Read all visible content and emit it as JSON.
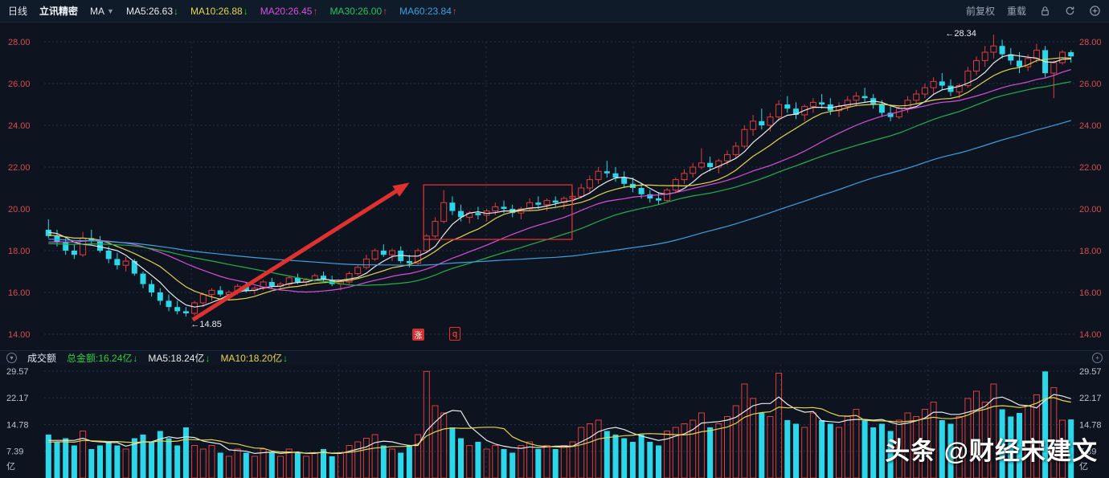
{
  "toolbar": {
    "period": "日线",
    "symbol": "立讯精密",
    "ma_selector": "MA",
    "ma_items": [
      {
        "text": "MA5:26.63",
        "arrow": "↓",
        "color": "#e9e9e9",
        "arrow_color": "#2ecc40"
      },
      {
        "text": "MA10:26.88",
        "arrow": "↓",
        "color": "#e6d44c",
        "arrow_color": "#2ecc40"
      },
      {
        "text": "MA20:26.45",
        "arrow": "↑",
        "color": "#d94fd9",
        "arrow_color": "#e23b3b"
      },
      {
        "text": "MA30:26.00",
        "arrow": "↑",
        "color": "#22c55e",
        "arrow_color": "#e23b3b"
      },
      {
        "text": "MA60:23.84",
        "arrow": "↑",
        "color": "#3e9fe0",
        "arrow_color": "#e23b3b"
      }
    ],
    "buttons": [
      "前复权",
      "重载"
    ]
  },
  "volume_header": {
    "title": "成交额",
    "items": [
      {
        "text": "总金额:16.24亿",
        "arrow": "↓",
        "color": "#2ecc40",
        "arrow_color": "#2ecc40"
      },
      {
        "text": "MA5:18.24亿",
        "arrow": "↓",
        "color": "#e9e9e9",
        "arrow_color": "#2ecc40"
      },
      {
        "text": "MA10:18.20亿",
        "arrow": "↓",
        "color": "#e6d44c",
        "arrow_color": "#2ecc40"
      }
    ]
  },
  "annotations": {
    "high_label": "←28.34",
    "low_label": "←14.85",
    "badge_zhang": "涨",
    "badge_q": "q"
  },
  "watermark": "头条 @财经宋建文",
  "colors": {
    "bg": "#0d141f",
    "up": "#e23b3b",
    "down": "#2bd7e8",
    "grid": "#1c334f",
    "axis": "#d94b4b",
    "vol_axis": "#b9c4d0",
    "annotation": "#e03131",
    "label_text": "#e8eef5"
  },
  "chart_data": {
    "type": "candlestick",
    "title": "立讯精密 日线",
    "price_ticks": [
      28,
      26,
      24,
      22,
      20,
      18,
      16,
      14
    ],
    "ylim": [
      14,
      28.5
    ],
    "high_value": 28.34,
    "low_value": 14.85,
    "volume_ticks": [
      29.57,
      22.17,
      14.78,
      7.39
    ],
    "volume_unit": "亿",
    "total_amount_label": "16.24亿",
    "ma_periods": [
      5,
      10,
      20,
      30,
      60
    ],
    "ma_colors": [
      "#e9e9e9",
      "#e6d44c",
      "#d94fd9",
      "#22b14c",
      "#3e9fe0"
    ],
    "volume_ma_periods": [
      5,
      10
    ],
    "volume_ma_colors": [
      "#e9e9e9",
      "#e6d44c"
    ],
    "prehistory_closes": [
      19.2,
      19.3,
      19.1,
      19.4,
      19.2,
      19.0,
      19.1,
      18.9,
      19.0,
      18.8,
      18.9,
      19.1,
      19.0,
      18.8,
      18.7,
      18.9,
      18.8,
      18.6,
      18.7,
      18.5,
      18.6,
      18.8,
      18.7,
      18.5,
      18.4,
      18.6,
      18.5,
      18.3,
      18.4,
      18.2,
      18.3,
      18.5,
      18.4,
      18.2,
      18.1,
      18.3,
      18.2,
      18.0,
      18.1,
      17.9,
      18.0,
      18.2,
      18.1,
      17.9,
      17.8,
      18.0,
      17.9,
      18.1,
      18.2,
      18.4,
      18.3,
      18.5,
      18.6,
      18.4,
      18.6,
      18.8,
      18.7,
      18.9,
      19.0,
      19.1
    ],
    "prehistory_volumes": [
      10,
      9,
      11,
      10,
      8,
      9,
      10,
      11,
      9,
      10
    ],
    "candles": [
      [
        19.0,
        19.5,
        18.6,
        18.7
      ],
      [
        18.7,
        19.0,
        18.2,
        18.4
      ],
      [
        18.4,
        18.6,
        17.8,
        18.0
      ],
      [
        18.0,
        18.3,
        17.6,
        17.8
      ],
      [
        17.8,
        18.9,
        17.7,
        18.6
      ],
      [
        18.6,
        19.0,
        18.3,
        18.5
      ],
      [
        18.5,
        18.7,
        17.9,
        18.0
      ],
      [
        18.0,
        18.2,
        17.4,
        17.6
      ],
      [
        17.6,
        17.9,
        17.1,
        17.3
      ],
      [
        17.3,
        17.7,
        17.0,
        17.5
      ],
      [
        17.5,
        17.6,
        16.8,
        16.9
      ],
      [
        16.9,
        17.0,
        16.2,
        16.4
      ],
      [
        16.4,
        16.6,
        15.8,
        16.0
      ],
      [
        16.0,
        16.2,
        15.4,
        15.6
      ],
      [
        15.6,
        15.9,
        15.1,
        15.3
      ],
      [
        15.3,
        15.6,
        14.95,
        15.1
      ],
      [
        15.1,
        15.3,
        14.85,
        15.0
      ],
      [
        15.0,
        15.6,
        14.9,
        15.5
      ],
      [
        15.5,
        16.0,
        15.3,
        15.9
      ],
      [
        15.9,
        16.2,
        15.6,
        16.1
      ],
      [
        16.1,
        16.3,
        15.8,
        15.9
      ],
      [
        15.9,
        16.1,
        15.6,
        16.0
      ],
      [
        16.0,
        16.4,
        15.9,
        16.3
      ],
      [
        16.3,
        16.5,
        16.0,
        16.1
      ],
      [
        16.1,
        16.3,
        15.9,
        16.2
      ],
      [
        16.2,
        16.6,
        16.1,
        16.5
      ],
      [
        16.5,
        16.7,
        16.2,
        16.3
      ],
      [
        16.3,
        16.5,
        16.1,
        16.4
      ],
      [
        16.4,
        16.8,
        16.3,
        16.7
      ],
      [
        16.7,
        16.9,
        16.4,
        16.5
      ],
      [
        16.5,
        16.7,
        16.3,
        16.6
      ],
      [
        16.6,
        16.9,
        16.5,
        16.8
      ],
      [
        16.8,
        17.0,
        16.5,
        16.6
      ],
      [
        16.6,
        16.8,
        16.3,
        16.4
      ],
      [
        16.4,
        16.6,
        16.1,
        16.5
      ],
      [
        16.5,
        17.0,
        16.4,
        16.9
      ],
      [
        16.9,
        17.3,
        16.8,
        17.2
      ],
      [
        17.2,
        17.8,
        17.1,
        17.6
      ],
      [
        17.6,
        18.1,
        17.5,
        18.0
      ],
      [
        18.0,
        18.3,
        17.7,
        17.8
      ],
      [
        17.8,
        18.1,
        17.5,
        18.0
      ],
      [
        18.0,
        18.2,
        17.4,
        17.5
      ],
      [
        17.5,
        17.8,
        17.2,
        17.4
      ],
      [
        17.4,
        18.1,
        17.3,
        18.0
      ],
      [
        18.0,
        18.8,
        17.9,
        18.7
      ],
      [
        18.7,
        19.6,
        18.6,
        19.4
      ],
      [
        19.4,
        20.9,
        19.3,
        20.3
      ],
      [
        20.3,
        20.6,
        19.7,
        19.9
      ],
      [
        19.9,
        20.2,
        19.4,
        19.6
      ],
      [
        19.6,
        19.9,
        19.3,
        19.8
      ],
      [
        19.8,
        20.1,
        19.5,
        19.7
      ],
      [
        19.7,
        20.0,
        19.4,
        19.9
      ],
      [
        19.9,
        20.3,
        19.7,
        20.1
      ],
      [
        20.1,
        20.4,
        19.8,
        20.0
      ],
      [
        20.0,
        20.2,
        19.6,
        19.8
      ],
      [
        19.8,
        20.1,
        19.5,
        20.0
      ],
      [
        20.0,
        20.5,
        19.9,
        20.3
      ],
      [
        20.3,
        20.6,
        20.0,
        20.2
      ],
      [
        20.2,
        20.5,
        19.9,
        20.4
      ],
      [
        20.4,
        20.6,
        20.1,
        20.3
      ],
      [
        20.3,
        20.6,
        20.0,
        20.5
      ],
      [
        20.5,
        20.8,
        20.2,
        20.6
      ],
      [
        20.6,
        21.2,
        20.5,
        21.0
      ],
      [
        21.0,
        21.6,
        20.8,
        21.4
      ],
      [
        21.4,
        22.0,
        21.2,
        21.8
      ],
      [
        21.8,
        22.3,
        21.5,
        21.7
      ],
      [
        21.7,
        22.0,
        21.3,
        21.5
      ],
      [
        21.5,
        21.8,
        21.0,
        21.2
      ],
      [
        21.2,
        21.5,
        20.8,
        21.0
      ],
      [
        21.0,
        21.2,
        20.5,
        20.7
      ],
      [
        20.7,
        20.9,
        20.3,
        20.5
      ],
      [
        20.5,
        20.8,
        20.2,
        20.4
      ],
      [
        20.4,
        21.0,
        20.3,
        20.9
      ],
      [
        20.9,
        21.5,
        20.8,
        21.4
      ],
      [
        21.4,
        21.9,
        21.2,
        21.7
      ],
      [
        21.7,
        22.2,
        21.5,
        22.0
      ],
      [
        22.0,
        22.9,
        21.9,
        22.2
      ],
      [
        22.2,
        22.5,
        21.8,
        22.0
      ],
      [
        22.0,
        22.4,
        21.7,
        22.3
      ],
      [
        22.3,
        22.8,
        22.1,
        22.6
      ],
      [
        22.6,
        23.2,
        22.4,
        23.0
      ],
      [
        23.0,
        24.0,
        22.9,
        23.8
      ],
      [
        23.8,
        24.5,
        23.5,
        24.2
      ],
      [
        24.2,
        24.8,
        23.8,
        24.0
      ],
      [
        24.0,
        24.6,
        23.7,
        24.4
      ],
      [
        24.4,
        25.2,
        24.2,
        25.0
      ],
      [
        25.0,
        25.4,
        24.6,
        24.8
      ],
      [
        24.8,
        25.1,
        24.3,
        24.5
      ],
      [
        24.5,
        25.0,
        24.2,
        24.9
      ],
      [
        24.9,
        25.3,
        24.6,
        25.1
      ],
      [
        25.1,
        25.5,
        24.8,
        25.0
      ],
      [
        25.0,
        25.3,
        24.5,
        24.7
      ],
      [
        24.7,
        25.1,
        24.4,
        24.9
      ],
      [
        24.9,
        25.4,
        24.7,
        25.2
      ],
      [
        25.2,
        25.6,
        24.9,
        25.4
      ],
      [
        25.4,
        25.8,
        25.1,
        25.3
      ],
      [
        25.3,
        25.5,
        24.8,
        25.0
      ],
      [
        25.0,
        25.2,
        24.4,
        24.6
      ],
      [
        24.6,
        25.0,
        24.2,
        24.4
      ],
      [
        24.4,
        24.9,
        24.3,
        24.8
      ],
      [
        24.8,
        25.4,
        24.6,
        25.2
      ],
      [
        25.2,
        25.7,
        25.0,
        25.5
      ],
      [
        25.5,
        26.0,
        25.3,
        25.8
      ],
      [
        25.8,
        26.3,
        25.5,
        26.1
      ],
      [
        26.1,
        26.5,
        25.7,
        25.9
      ],
      [
        25.9,
        26.2,
        25.4,
        25.6
      ],
      [
        25.6,
        26.0,
        25.3,
        25.9
      ],
      [
        25.9,
        26.8,
        25.8,
        26.6
      ],
      [
        26.6,
        27.3,
        26.4,
        27.1
      ],
      [
        27.1,
        27.8,
        26.8,
        27.5
      ],
      [
        27.5,
        28.34,
        27.2,
        27.8
      ],
      [
        27.8,
        28.1,
        27.2,
        27.4
      ],
      [
        27.4,
        27.7,
        26.9,
        27.1
      ],
      [
        27.1,
        27.5,
        26.5,
        26.8
      ],
      [
        26.8,
        27.4,
        26.6,
        27.2
      ],
      [
        27.2,
        27.9,
        27.0,
        27.6
      ],
      [
        27.6,
        27.8,
        26.3,
        26.5
      ],
      [
        26.5,
        27.1,
        25.3,
        27.0
      ],
      [
        27.0,
        27.6,
        26.9,
        27.5
      ],
      [
        27.5,
        27.6,
        27.0,
        27.3
      ]
    ],
    "volumes": [
      12,
      10,
      11,
      9,
      13,
      8,
      9,
      10,
      9,
      8,
      11,
      12,
      10,
      13,
      11,
      9,
      14,
      9,
      8,
      9,
      7,
      6,
      8,
      7,
      6,
      8,
      7,
      6,
      8,
      7,
      6,
      7,
      8,
      6,
      7,
      9,
      10,
      11,
      12,
      9,
      8,
      7,
      9,
      12,
      29.5,
      20,
      18,
      14,
      11,
      9,
      10,
      8,
      9,
      8,
      7,
      9,
      10,
      8,
      9,
      8,
      9,
      10,
      14,
      15,
      16,
      13,
      12,
      11,
      10,
      12,
      10,
      9,
      13,
      14,
      15,
      16,
      18,
      14,
      15,
      17,
      20,
      26,
      22,
      18,
      17,
      29,
      16,
      15,
      14,
      18,
      16,
      15,
      14,
      17,
      19,
      16,
      14,
      15,
      13,
      16,
      18,
      17,
      19,
      21,
      16,
      15,
      17,
      22,
      24,
      21,
      26,
      19,
      17,
      18,
      20,
      23,
      29.5,
      25,
      16,
      16.2
    ],
    "drawing_box": {
      "x0_frac": 0.368,
      "x1_frac": 0.512,
      "top_price": 21.15,
      "bottom_price": 18.54
    },
    "drawing_arrow": {
      "from": {
        "x_frac": 0.144,
        "price": 14.69
      },
      "to": {
        "x_frac": 0.351,
        "price": 21.15
      }
    }
  }
}
